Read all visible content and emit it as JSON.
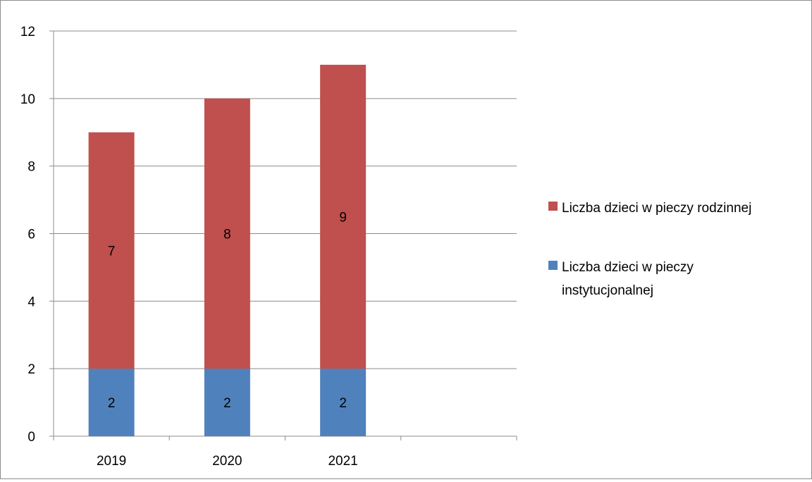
{
  "chart_data": {
    "type": "bar",
    "stacked": true,
    "categories": [
      "2019",
      "2020",
      "2021",
      ""
    ],
    "series": [
      {
        "name": "Liczba dzieci w pieczy instytucjonalnej",
        "color": "#4f81bd",
        "values": [
          2,
          2,
          2,
          null
        ],
        "labels": [
          "2",
          "2",
          "2",
          ""
        ]
      },
      {
        "name": "Liczba dzieci w pieczy rodzinnej",
        "color": "#c0504d",
        "values": [
          7,
          8,
          9,
          null
        ],
        "labels": [
          "7",
          "8",
          "9",
          ""
        ]
      }
    ],
    "yticks": [
      "0",
      "2",
      "4",
      "6",
      "8",
      "10",
      "12"
    ],
    "ylim": [
      0,
      12
    ],
    "grid": true,
    "legend_position": "right",
    "legend": [
      {
        "color": "#c0504d",
        "lines": [
          "Liczba dzieci w pieczy rodzinnej"
        ]
      },
      {
        "color": "#4f81bd",
        "lines": [
          "Liczba dzieci w pieczy",
          "instytucjonalnej"
        ]
      }
    ],
    "title": "",
    "xlabel": "",
    "ylabel": ""
  }
}
